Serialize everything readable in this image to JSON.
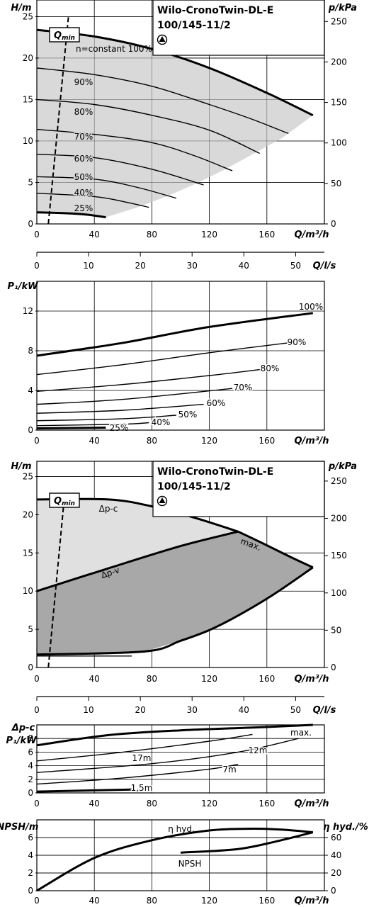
{
  "chart_data": [
    {
      "type": "line",
      "title": "Wilo-CronoTwin-DL-E 100/145-11/2",
      "xlabel": "Q/m³/h",
      "ylabel": "H/m",
      "y2label": "p/kPa",
      "x2label": "Q/l/s",
      "xlim": [
        0,
        200
      ],
      "ylim": [
        0,
        27
      ],
      "x_ticks": [
        0,
        40,
        80,
        120,
        160
      ],
      "y_ticks": [
        0,
        5,
        10,
        15,
        20,
        25
      ],
      "y2_ticks": [
        0,
        50,
        100,
        150,
        200,
        250
      ],
      "x2_ticks": [
        0,
        10,
        20,
        30,
        40,
        50
      ],
      "qmin_label": "Q",
      "qmin_sub": "min",
      "qmin_line": [
        {
          "x": 8,
          "y": 0
        },
        {
          "x": 22,
          "y": 25
        }
      ],
      "envelope_color": "#d9d9d9",
      "series": [
        {
          "name": "n=constant 100%",
          "points": [
            [
              0,
              23.4
            ],
            [
              40,
              22.6
            ],
            [
              80,
              21.1
            ],
            [
              120,
              18.8
            ],
            [
              160,
              15.8
            ],
            [
              192,
              13.1
            ]
          ]
        },
        {
          "name": "90%",
          "points": [
            [
              0,
              18.8
            ],
            [
              40,
              18.0
            ],
            [
              80,
              16.6
            ],
            [
              120,
              14.4
            ],
            [
              150,
              12.6
            ],
            [
              175,
              10.9
            ]
          ]
        },
        {
          "name": "80%",
          "points": [
            [
              0,
              15.0
            ],
            [
              40,
              14.4
            ],
            [
              80,
              13.1
            ],
            [
              120,
              11.3
            ],
            [
              155,
              8.5
            ]
          ]
        },
        {
          "name": "70%",
          "points": [
            [
              0,
              11.4
            ],
            [
              40,
              10.8
            ],
            [
              80,
              9.8
            ],
            [
              110,
              8.2
            ],
            [
              136,
              6.4
            ]
          ]
        },
        {
          "name": "60%",
          "points": [
            [
              0,
              8.4
            ],
            [
              40,
              8.0
            ],
            [
              80,
              6.6
            ],
            [
              116,
              4.7
            ]
          ]
        },
        {
          "name": "50%",
          "points": [
            [
              0,
              5.7
            ],
            [
              40,
              5.4
            ],
            [
              70,
              4.4
            ],
            [
              97,
              3.1
            ]
          ]
        },
        {
          "name": "40%",
          "points": [
            [
              0,
              3.7
            ],
            [
              40,
              3.3
            ],
            [
              60,
              2.7
            ],
            [
              78,
              2.0
            ]
          ]
        },
        {
          "name": "25%",
          "points": [
            [
              0,
              1.4
            ],
            [
              30,
              1.2
            ],
            [
              48,
              0.8
            ]
          ]
        }
      ]
    },
    {
      "type": "line",
      "xlabel": "Q/m³/h",
      "ylabel": "P₁/kW",
      "xlim": [
        0,
        200
      ],
      "ylim": [
        0,
        15
      ],
      "x_ticks": [
        0,
        40,
        80,
        120,
        160
      ],
      "y_ticks": [
        0,
        4,
        8,
        12
      ],
      "series": [
        {
          "name": "100%",
          "points": [
            [
              0,
              7.5
            ],
            [
              60,
              8.8
            ],
            [
              120,
              10.4
            ],
            [
              192,
              11.8
            ]
          ]
        },
        {
          "name": "90%",
          "points": [
            [
              0,
              5.6
            ],
            [
              60,
              6.6
            ],
            [
              120,
              7.8
            ],
            [
              175,
              8.8
            ]
          ]
        },
        {
          "name": "80%",
          "points": [
            [
              0,
              3.9
            ],
            [
              60,
              4.6
            ],
            [
              120,
              5.5
            ],
            [
              155,
              6.1
            ]
          ]
        },
        {
          "name": "70%",
          "points": [
            [
              0,
              2.6
            ],
            [
              60,
              3.1
            ],
            [
              136,
              4.2
            ]
          ]
        },
        {
          "name": "60%",
          "points": [
            [
              0,
              1.7
            ],
            [
              60,
              2.0
            ],
            [
              116,
              2.6
            ]
          ]
        },
        {
          "name": "50%",
          "points": [
            [
              0,
              0.95
            ],
            [
              60,
              1.15
            ],
            [
              97,
              1.5
            ]
          ]
        },
        {
          "name": "40%",
          "points": [
            [
              0,
              0.45
            ],
            [
              60,
              0.6
            ],
            [
              78,
              0.75
            ]
          ]
        },
        {
          "name": "25%",
          "points": [
            [
              0,
              0.18
            ],
            [
              48,
              0.25
            ]
          ]
        }
      ]
    },
    {
      "type": "area",
      "title": "Wilo-CronoTwin-DL-E 100/145-11/2",
      "xlabel": "Q/m³/h",
      "ylabel": "H/m",
      "y2label": "p/kPa",
      "x2label": "Q/l/s",
      "xlim": [
        0,
        200
      ],
      "ylim": [
        0,
        27
      ],
      "x_ticks": [
        0,
        40,
        80,
        120,
        160
      ],
      "y_ticks": [
        0,
        5,
        10,
        15,
        20,
        25
      ],
      "y2_ticks": [
        0,
        50,
        100,
        150,
        200,
        250
      ],
      "x2_ticks": [
        0,
        10,
        20,
        30,
        40,
        50
      ],
      "qmin_label": "Q",
      "qmin_sub": "min",
      "qmin_line": [
        {
          "x": 8,
          "y": 0
        },
        {
          "x": 19,
          "y": 22
        }
      ],
      "label_dpc": "Δp-c",
      "label_dpv": "Δp-v",
      "label_max": "max.",
      "light_fill": "#e0e0e0",
      "dark_fill": "#a8a8a8",
      "dpc_line": [
        [
          0,
          22.0
        ],
        [
          50,
          22.0
        ],
        [
          80,
          21.1
        ],
        [
          110,
          19.6
        ],
        [
          140,
          17.8
        ]
      ],
      "dpv_line": [
        [
          0,
          10.0
        ],
        [
          50,
          13.0
        ],
        [
          100,
          15.9
        ],
        [
          140,
          17.8
        ]
      ],
      "max_line": [
        [
          140,
          17.8
        ],
        [
          160,
          16.0
        ],
        [
          175,
          14.6
        ],
        [
          192,
          13.1
        ]
      ],
      "lower_line": [
        [
          192,
          13.1
        ],
        [
          165,
          9.6
        ],
        [
          140,
          6.8
        ],
        [
          120,
          4.9
        ],
        [
          100,
          3.5
        ],
        [
          75,
          2.1
        ],
        [
          0,
          1.7
        ]
      ],
      "min_line": [
        [
          0,
          1.5
        ],
        [
          66,
          1.5
        ]
      ]
    },
    {
      "type": "line",
      "xlabel": "Q/m³/h",
      "ylabel": "P₁/kW",
      "ylabel_top": "Δp-c",
      "xlim": [
        0,
        200
      ],
      "ylim": [
        0,
        10
      ],
      "x_ticks": [
        0,
        40,
        80,
        120,
        160
      ],
      "y_ticks": [
        0,
        2,
        4,
        6,
        8
      ],
      "series": [
        {
          "name": "max.",
          "points": [
            [
              0,
              7.0
            ],
            [
              50,
              8.5
            ],
            [
              100,
              9.2
            ],
            [
              150,
              9.6
            ],
            [
              192,
              10.0
            ]
          ]
        },
        {
          "name": "17m",
          "points": [
            [
              0,
              4.7
            ],
            [
              60,
              6.0
            ],
            [
              120,
              7.6
            ],
            [
              150,
              8.6
            ]
          ]
        },
        {
          "name": "12m",
          "points": [
            [
              0,
              3.0
            ],
            [
              80,
              4.3
            ],
            [
              140,
              6.0
            ],
            [
              182,
              8.0
            ]
          ]
        },
        {
          "name": "7m",
          "points": [
            [
              0,
              1.3
            ],
            [
              60,
              2.2
            ],
            [
              120,
              3.5
            ],
            [
              140,
              4.2
            ]
          ]
        },
        {
          "name": "1,5m",
          "points": [
            [
              0,
              0.2
            ],
            [
              66,
              0.5
            ]
          ]
        }
      ]
    },
    {
      "type": "line",
      "xlabel": "Q/m³/h",
      "ylabel": "NPSH/m",
      "y2label": "η hyd./%",
      "xlim": [
        0,
        200
      ],
      "ylim": [
        0,
        8
      ],
      "y2lim": [
        0,
        80
      ],
      "x_ticks": [
        0,
        40,
        80,
        120,
        160
      ],
      "y_ticks": [
        0,
        2,
        4,
        6
      ],
      "y2_ticks": [
        0,
        20,
        40,
        60
      ],
      "series": [
        {
          "name": "η hyd.",
          "axis": "right",
          "points": [
            [
              0,
              0
            ],
            [
              40,
              37
            ],
            [
              80,
              57
            ],
            [
              120,
              68
            ],
            [
              150,
              70
            ],
            [
              170,
              69
            ],
            [
              192,
              66
            ]
          ]
        },
        {
          "name": "NPSH",
          "axis": "left",
          "points": [
            [
              100,
              4.3
            ],
            [
              140,
              4.7
            ],
            [
              170,
              5.7
            ],
            [
              192,
              6.6
            ]
          ]
        }
      ]
    }
  ]
}
